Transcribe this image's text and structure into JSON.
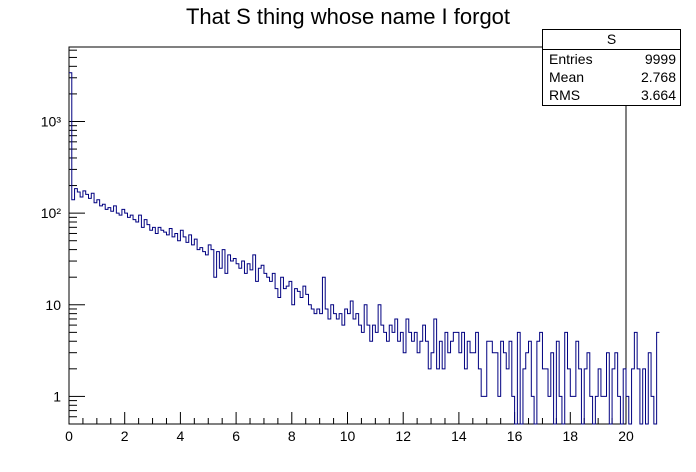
{
  "chart_data": {
    "type": "histogram",
    "title": "That S thing whose name I forgot",
    "xlabel": "",
    "ylabel": "",
    "xlim": [
      0,
      20
    ],
    "ylim": [
      0.5,
      6500
    ],
    "y_scale": "log",
    "bin_width": 0.1,
    "grid": false,
    "line_color": "#000080",
    "x_ticks": [
      0,
      2,
      4,
      6,
      8,
      10,
      12,
      14,
      16,
      18,
      20
    ],
    "y_ticks": [
      {
        "value": 1,
        "label": "1"
      },
      {
        "value": 10,
        "label": "10"
      },
      {
        "value": 100,
        "label": "10²"
      },
      {
        "value": 1000,
        "label": "10³"
      }
    ],
    "stats": {
      "name": "S",
      "entries_label": "Entries",
      "entries": "9999",
      "mean_label": "Mean",
      "mean": "2.768",
      "rms_label": "RMS",
      "rms": "3.664"
    },
    "bin_counts": [
      3400,
      140,
      185,
      170,
      150,
      175,
      160,
      145,
      165,
      130,
      140,
      120,
      125,
      110,
      115,
      105,
      120,
      100,
      95,
      110,
      100,
      90,
      95,
      85,
      80,
      95,
      70,
      85,
      75,
      65,
      70,
      60,
      70,
      65,
      62,
      58,
      68,
      55,
      60,
      50,
      65,
      55,
      48,
      58,
      45,
      52,
      40,
      42,
      38,
      35,
      45,
      40,
      20,
      38,
      25,
      40,
      22,
      35,
      30,
      32,
      28,
      25,
      30,
      22,
      28,
      24,
      35,
      18,
      25,
      27,
      22,
      20,
      18,
      22,
      15,
      12,
      20,
      15,
      16,
      18,
      10,
      15,
      14,
      12,
      16,
      13,
      10,
      9,
      8,
      9,
      8,
      20,
      9,
      7,
      10,
      8,
      7,
      8,
      6,
      9,
      8,
      11,
      7,
      8,
      6,
      5,
      10,
      6,
      4,
      6,
      5,
      10,
      6,
      5,
      4,
      6,
      5,
      7,
      4,
      5,
      3,
      7,
      5,
      4,
      5,
      3,
      4,
      6,
      4,
      2,
      3,
      7,
      2,
      4,
      2,
      5,
      3,
      4,
      5,
      5,
      3,
      5,
      2,
      4,
      3,
      3,
      5,
      2,
      1,
      1,
      4,
      4,
      3,
      3,
      1,
      4,
      3,
      2,
      4,
      1,
      0,
      5,
      0,
      2,
      3,
      4,
      1,
      0,
      4,
      5,
      2,
      2,
      1,
      3,
      0,
      4,
      1,
      0,
      5,
      2,
      1,
      1,
      4,
      2,
      0,
      2,
      3,
      1,
      0,
      1,
      2,
      1,
      1,
      3,
      0,
      2,
      3,
      1,
      0,
      2,
      1,
      0,
      2,
      5,
      2,
      0,
      2,
      0,
      3,
      1,
      0,
      5
    ]
  }
}
